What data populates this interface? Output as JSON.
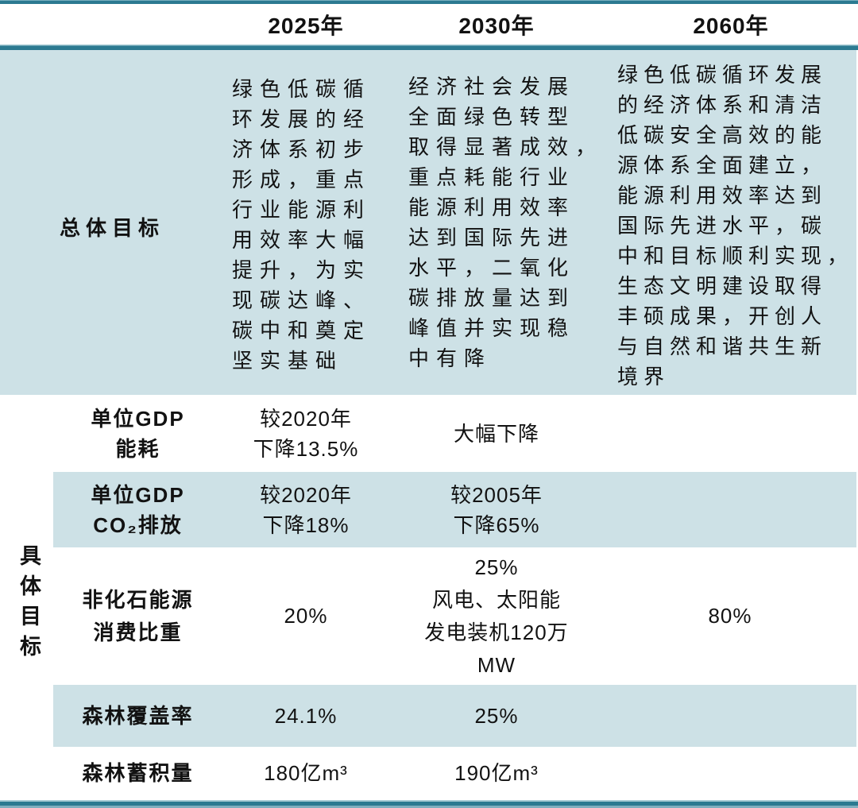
{
  "header": {
    "years": [
      "2025年",
      "2030年",
      "2060年"
    ]
  },
  "overall": {
    "label": "总体目标",
    "y2025": "绿色低碳循\n环发展的经\n济体系初步\n形成，重点\n行业能源利\n用效率大幅\n提升，为实\n现碳达峰、\n碳中和奠定\n坚实基础",
    "y2030": "经济社会发展\n全面绿色转型\n取得显著成效，\n重点耗能行业\n能源利用效率\n达到国际先进\n水平，二氧化\n碳排放量达到\n峰值并实现稳\n中有降",
    "y2060": "绿色低碳循环发展\n的经济体系和清洁\n低碳安全高效的能\n源体系全面建立，\n能源利用效率达到\n国际先进水平，碳\n中和目标顺利实现，\n生态文明建设取得\n丰硕成果，开创人\n与自然和谐共生新\n境界"
  },
  "specific": {
    "label": "具体目标",
    "rows": [
      {
        "name": "单位GDP\n能耗",
        "v2025": "较2020年\n下降13.5%",
        "v2030": "大幅下降",
        "v2060": ""
      },
      {
        "name": "单位GDP\nCO₂排放",
        "v2025": "较2020年\n下降18%",
        "v2030": "较2005年\n下降65%",
        "v2060": ""
      },
      {
        "name": "非化石能源\n消费比重",
        "v2025": "20%",
        "v2030": "25%\n风电、太阳能\n发电装机120万\nMW",
        "v2060": "80%"
      },
      {
        "name": "森林覆盖率",
        "v2025": "24.1%",
        "v2030": "25%",
        "v2060": ""
      },
      {
        "name": "森林蓄积量",
        "v2025": "180亿m³",
        "v2030": "190亿m³",
        "v2060": ""
      }
    ]
  },
  "colors": {
    "band_blue": "#cde1e6",
    "border_teal": "#2c7a91"
  },
  "chart_data": {
    "type": "table",
    "columns": [
      "",
      "2025年",
      "2030年",
      "2060年"
    ],
    "rows": [
      [
        "总体目标",
        "绿色低碳循环发展的经济体系初步形成，重点行业能源利用效率大幅提升，为实现碳达峰、碳中和奠定坚实基础",
        "经济社会发展全面绿色转型取得显著成效，重点耗能行业能源利用效率达到国际先进水平，二氧化碳排放量达到峰值并实现稳中有降",
        "绿色低碳循环发展的经济体系和清洁低碳安全高效的能源体系全面建立，能源利用效率达到国际先进水平，碳中和目标顺利实现，生态文明建设取得丰硕成果，开创人与自然和谐共生新境界"
      ],
      [
        "具体目标：单位GDP能耗",
        "较2020年下降13.5%",
        "大幅下降",
        ""
      ],
      [
        "具体目标：单位GDP CO₂排放",
        "较2020年下降18%",
        "较2005年下降65%",
        ""
      ],
      [
        "具体目标：非化石能源消费比重",
        "20%",
        "25%；风电、太阳能发电装机120万MW",
        "80%"
      ],
      [
        "具体目标：森林覆盖率",
        "24.1%",
        "25%",
        ""
      ],
      [
        "具体目标：森林蓄积量",
        "180亿m³",
        "190亿m³",
        ""
      ]
    ]
  }
}
